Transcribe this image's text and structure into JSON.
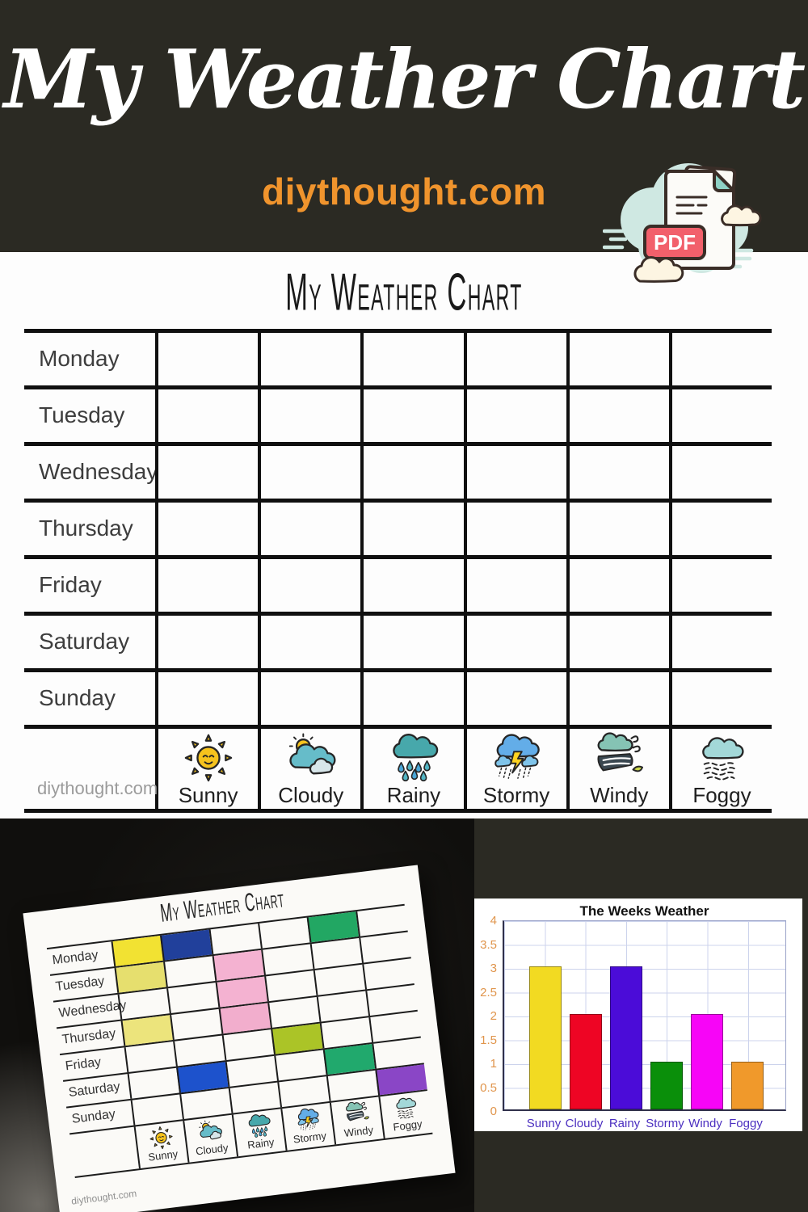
{
  "header": {
    "title": "My Weather Chart",
    "site": "diythought.com",
    "pdf_label": "PDF"
  },
  "printable": {
    "title": "My Weather Chart",
    "days": [
      "Monday",
      "Tuesday",
      "Wednesday",
      "Thursday",
      "Friday",
      "Saturday",
      "Sunday"
    ],
    "weather": [
      {
        "label": "Sunny",
        "icon": "sunny"
      },
      {
        "label": "Cloudy",
        "icon": "cloudy"
      },
      {
        "label": "Rainy",
        "icon": "rainy"
      },
      {
        "label": "Stormy",
        "icon": "stormy"
      },
      {
        "label": "Windy",
        "icon": "windy"
      },
      {
        "label": "Foggy",
        "icon": "foggy"
      }
    ],
    "watermark": "diythought.com"
  },
  "photo": {
    "title": "My Weather Chart",
    "days": [
      "Monday",
      "Tuesday",
      "Wednesday",
      "Thursday",
      "Friday",
      "Saturday",
      "Sunday"
    ],
    "weather": [
      {
        "label": "Sunny",
        "icon": "sunny"
      },
      {
        "label": "Cloudy",
        "icon": "cloudy"
      },
      {
        "label": "Rainy",
        "icon": "rainy"
      },
      {
        "label": "Stormy",
        "icon": "stormy"
      },
      {
        "label": "Windy",
        "icon": "windy"
      },
      {
        "label": "Foggy",
        "icon": "foggy"
      }
    ],
    "watermark": "diythought.com",
    "filled_cells": [
      {
        "day": "Monday",
        "weather": "Sunny",
        "color": "#f2e232"
      },
      {
        "day": "Monday",
        "weather": "Cloudy",
        "color": "#21409b"
      },
      {
        "day": "Monday",
        "weather": "Windy",
        "color": "#22a763"
      },
      {
        "day": "Tuesday",
        "weather": "Sunny",
        "color": "#e6df6e"
      },
      {
        "day": "Tuesday",
        "weather": "Rainy",
        "color": "#f4b2d1"
      },
      {
        "day": "Wednesday",
        "weather": "Rainy",
        "color": "#f4b2d1"
      },
      {
        "day": "Thursday",
        "weather": "Sunny",
        "color": "#ece47c"
      },
      {
        "day": "Thursday",
        "weather": "Rainy",
        "color": "#f2aecd"
      },
      {
        "day": "Friday",
        "weather": "Stormy",
        "color": "#abc427"
      },
      {
        "day": "Saturday",
        "weather": "Cloudy",
        "color": "#1d52cc"
      },
      {
        "day": "Saturday",
        "weather": "Windy",
        "color": "#21a96d"
      },
      {
        "day": "Sunday",
        "weather": "Foggy",
        "color": "#8a46c6"
      }
    ]
  },
  "chart_data": {
    "type": "bar",
    "title": "The Weeks Weather",
    "categories": [
      "Sunny",
      "Cloudy",
      "Rainy",
      "Stormy",
      "Windy",
      "Foggy"
    ],
    "values": [
      3,
      2,
      3,
      1,
      2,
      1
    ],
    "colors": [
      "#f2da22",
      "#ee0524",
      "#4b0cd8",
      "#0a8f0a",
      "#f705f7",
      "#f0992b"
    ],
    "ylim": [
      0,
      4
    ],
    "ytick_step": 0.5,
    "yticks": [
      "4",
      "3.5",
      "3",
      "2.5",
      "2",
      "1.5",
      "1",
      "0.5",
      "0"
    ],
    "grid": true,
    "legend": "none",
    "xlabel": "",
    "ylabel": "",
    "tick_color": "#e0954c",
    "category_label_color": "#4b2fc0"
  }
}
